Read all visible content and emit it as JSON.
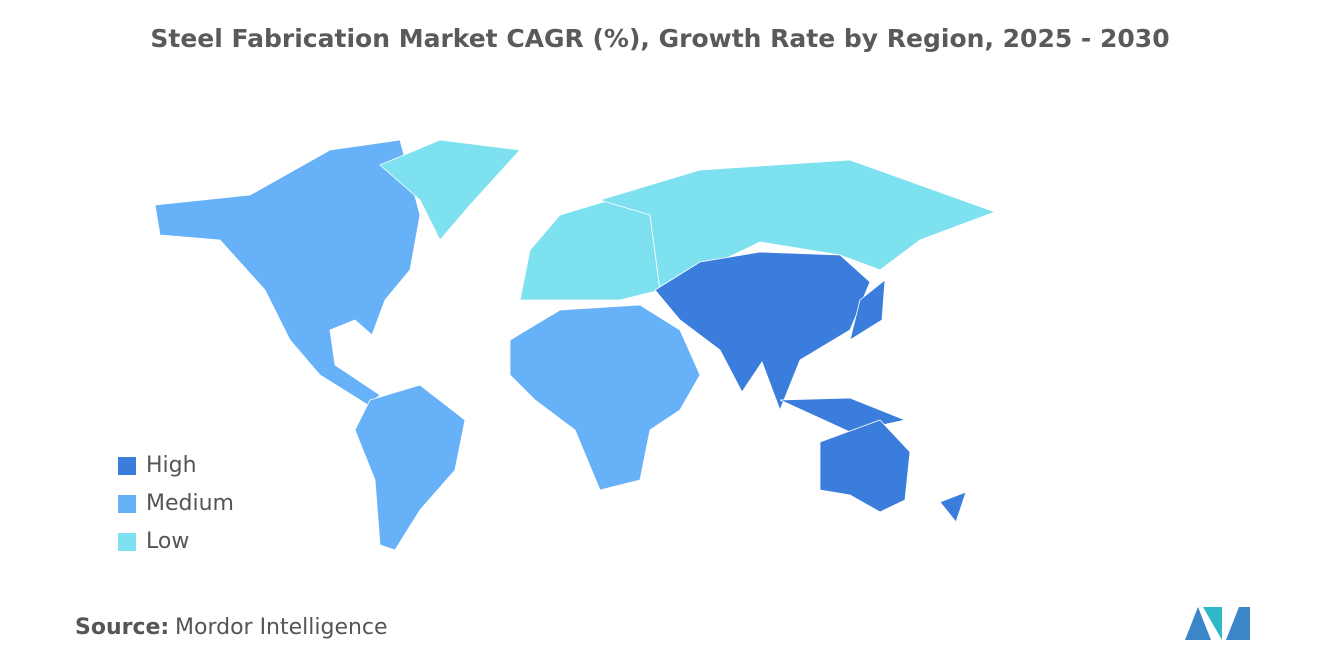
{
  "title": "Steel Fabrication Market CAGR (%), Growth Rate by Region, 2025 - 2030",
  "legend": [
    {
      "label": "High",
      "color": "#3b7ddd"
    },
    {
      "label": "Medium",
      "color": "#66b1f7"
    },
    {
      "label": "Low",
      "color": "#7de1ef"
    }
  ],
  "source": {
    "label": "Source:",
    "text": "Mordor Intelligence"
  }
}
